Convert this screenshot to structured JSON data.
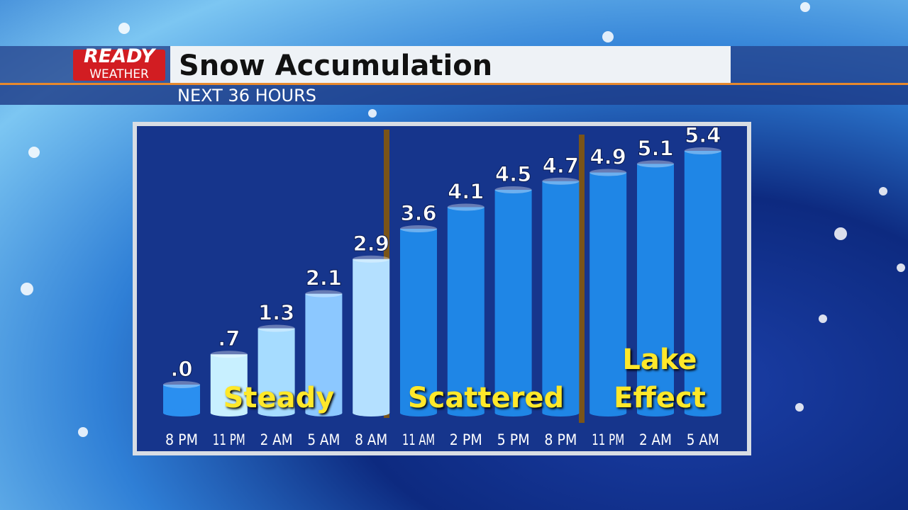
{
  "header": {
    "logo_top": "READY",
    "logo_bottom": "WEATHER",
    "title": "Snow Accumulation",
    "subtitle": "NEXT 36 HOURS"
  },
  "chart_data": {
    "type": "bar",
    "categories": [
      "8 PM",
      "11 PM",
      "2 AM",
      "5 AM",
      "8 AM",
      "11 AM",
      "2 PM",
      "5 PM",
      "8 PM",
      "11 PM",
      "2 AM",
      "5 AM"
    ],
    "values": [
      0,
      0.7,
      1.3,
      2.1,
      2.9,
      3.6,
      4.1,
      4.5,
      4.7,
      4.9,
      5.1,
      5.4
    ],
    "value_labels": [
      ".0",
      ".7",
      "1.3",
      "2.1",
      "2.9",
      "3.6",
      "4.1",
      "4.5",
      "4.7",
      "4.9",
      "5.1",
      "5.4"
    ],
    "colors": [
      "#2a8ff0",
      "#c8f0ff",
      "#a6dcff",
      "#8cc8ff",
      "#b4e0ff",
      "#1f86e6",
      "#1f86e6",
      "#1f86e6",
      "#1f86e6",
      "#1f86e6",
      "#1f86e6",
      "#1f86e6"
    ],
    "annotations": [
      "Steady",
      "Scattered",
      "Lake Effect"
    ]
  }
}
